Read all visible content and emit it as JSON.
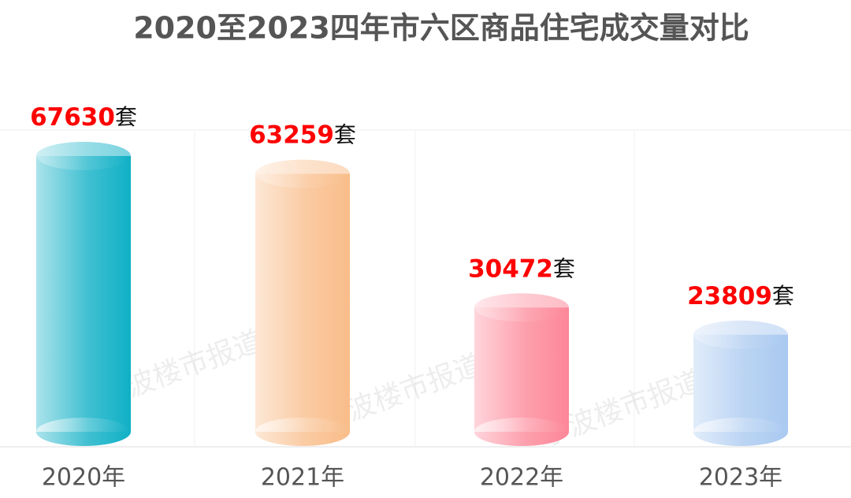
{
  "chart_data": {
    "type": "cylinder-bar",
    "title": "2020至2023四年市六区商品住宅成交量对比",
    "categories": [
      "2020年",
      "2021年",
      "2022年",
      "2023年"
    ],
    "values": [
      67630,
      63259,
      30472,
      23809
    ],
    "value_unit": "套",
    "colors": [
      "#10b0c6",
      "#f9bd8a",
      "#fd8798",
      "#a9c9f0"
    ],
    "watermark": "宁波楼市报道"
  }
}
